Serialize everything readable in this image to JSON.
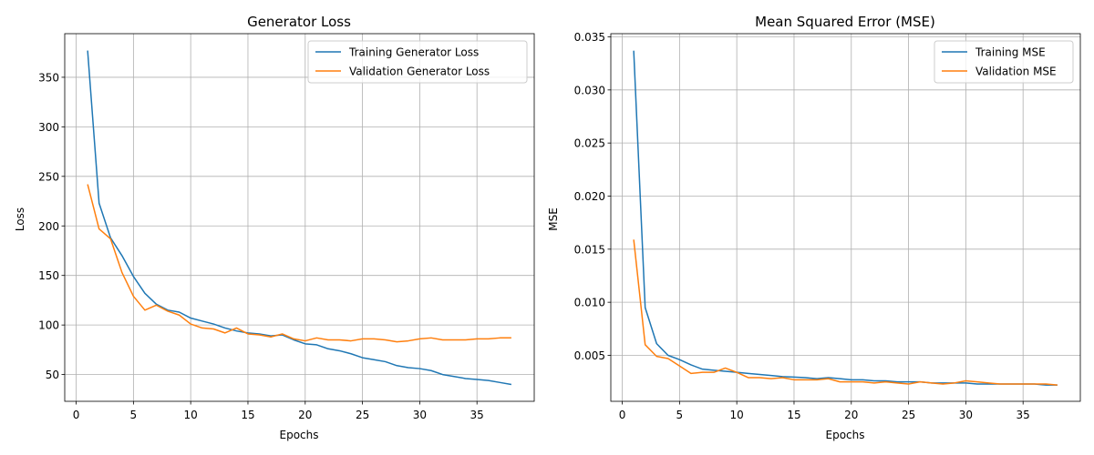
{
  "chart_data": [
    {
      "type": "line",
      "title": "Generator Loss",
      "xlabel": "Epochs",
      "ylabel": "Loss",
      "xlim": [
        -1,
        40
      ],
      "ylim": [
        23,
        394
      ],
      "xticks": [
        0,
        5,
        10,
        15,
        20,
        25,
        30,
        35
      ],
      "yticks": [
        50,
        100,
        150,
        200,
        250,
        300,
        350
      ],
      "ytick_labels": [
        "50",
        "100",
        "150",
        "200",
        "250",
        "300",
        "350"
      ],
      "grid": true,
      "legend_position": "top-right",
      "x": [
        1,
        2,
        3,
        4,
        5,
        6,
        7,
        8,
        9,
        10,
        11,
        12,
        13,
        14,
        15,
        16,
        17,
        18,
        19,
        20,
        21,
        22,
        23,
        24,
        25,
        26,
        27,
        28,
        29,
        30,
        31,
        32,
        33,
        34,
        35,
        36,
        37,
        38
      ],
      "series": [
        {
          "name": "Training Generator Loss",
          "color": "#1f77b4",
          "values": [
            377,
            223,
            188,
            170,
            149,
            132,
            121,
            115,
            113,
            107,
            104,
            101,
            97,
            94,
            92,
            91,
            89,
            90,
            85,
            81,
            80,
            76,
            74,
            71,
            67,
            65,
            63,
            59,
            57,
            56,
            54,
            50,
            48,
            46,
            45,
            44,
            42,
            40
          ]
        },
        {
          "name": "Validation Generator Loss",
          "color": "#ff7f0e",
          "values": [
            242,
            197,
            187,
            153,
            129,
            115,
            120,
            114,
            110,
            101,
            97,
            96,
            92,
            97,
            91,
            90,
            88,
            91,
            86,
            84,
            87,
            85,
            85,
            84,
            86,
            86,
            85,
            83,
            84,
            86,
            87,
            85,
            85,
            85,
            86,
            86,
            87,
            87
          ]
        }
      ]
    },
    {
      "type": "line",
      "title": "Mean Squared Error (MSE)",
      "xlabel": "Epochs",
      "ylabel": "MSE",
      "xlim": [
        -1,
        40
      ],
      "ylim": [
        0.00067,
        0.0353
      ],
      "xticks": [
        0,
        5,
        10,
        15,
        20,
        25,
        30,
        35
      ],
      "yticks": [
        0.005,
        0.01,
        0.015,
        0.02,
        0.025,
        0.03,
        0.035
      ],
      "ytick_labels": [
        "0.005",
        "0.010",
        "0.015",
        "0.020",
        "0.025",
        "0.030",
        "0.035"
      ],
      "grid": true,
      "legend_position": "top-right",
      "x": [
        1,
        2,
        3,
        4,
        5,
        6,
        7,
        8,
        9,
        10,
        11,
        12,
        13,
        14,
        15,
        16,
        17,
        18,
        19,
        20,
        21,
        22,
        23,
        24,
        25,
        26,
        27,
        28,
        29,
        30,
        31,
        32,
        33,
        34,
        35,
        36,
        37,
        38
      ],
      "series": [
        {
          "name": "Training MSE",
          "color": "#1f77b4",
          "values": [
            0.0337,
            0.0095,
            0.0061,
            0.005,
            0.0046,
            0.0041,
            0.0037,
            0.0036,
            0.0035,
            0.0034,
            0.0033,
            0.0032,
            0.0031,
            0.003,
            0.00295,
            0.0029,
            0.0028,
            0.0029,
            0.0028,
            0.0027,
            0.0027,
            0.0026,
            0.0026,
            0.0025,
            0.0025,
            0.0025,
            0.0024,
            0.0024,
            0.0024,
            0.0024,
            0.0023,
            0.0023,
            0.0023,
            0.0023,
            0.0023,
            0.0023,
            0.0022,
            0.0022
          ]
        },
        {
          "name": "Validation MSE",
          "color": "#ff7f0e",
          "values": [
            0.0159,
            0.006,
            0.0049,
            0.0047,
            0.004,
            0.0033,
            0.0034,
            0.0034,
            0.0038,
            0.0034,
            0.0029,
            0.0029,
            0.0028,
            0.0029,
            0.0027,
            0.0027,
            0.0027,
            0.0028,
            0.0025,
            0.0025,
            0.0025,
            0.0024,
            0.0025,
            0.0024,
            0.0023,
            0.0025,
            0.0024,
            0.0023,
            0.0024,
            0.0026,
            0.0025,
            0.0024,
            0.0023,
            0.0023,
            0.0023,
            0.0023,
            0.0023,
            0.0022
          ]
        }
      ]
    }
  ]
}
